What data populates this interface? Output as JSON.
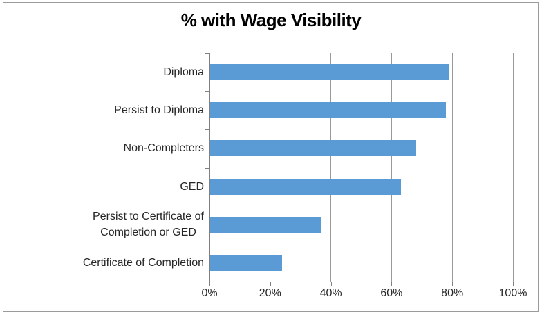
{
  "chart_data": {
    "type": "bar",
    "orientation": "horizontal",
    "title": "% with Wage Visibility",
    "categories": [
      "Diploma",
      "Persist to Diploma",
      "Non-Completers",
      "GED",
      "Persist to Certificate of\nCompletion or GED",
      "Certificate of Completion"
    ],
    "values": [
      79,
      78,
      68,
      63,
      37,
      24
    ],
    "x_tick_labels": [
      "0%",
      "20%",
      "40%",
      "60%",
      "80%",
      "100%"
    ],
    "x_tick_values": [
      0,
      20,
      40,
      60,
      80,
      100
    ],
    "xlim": [
      0,
      100
    ],
    "grid": true,
    "legend_position": "none",
    "colors": {
      "bar": "#5b9bd5",
      "gridline": "#999999",
      "axis": "#808080",
      "frame_border": "#9b9b9b",
      "title_text": "#000000",
      "label_text": "#262626",
      "background": "#ffffff"
    }
  }
}
